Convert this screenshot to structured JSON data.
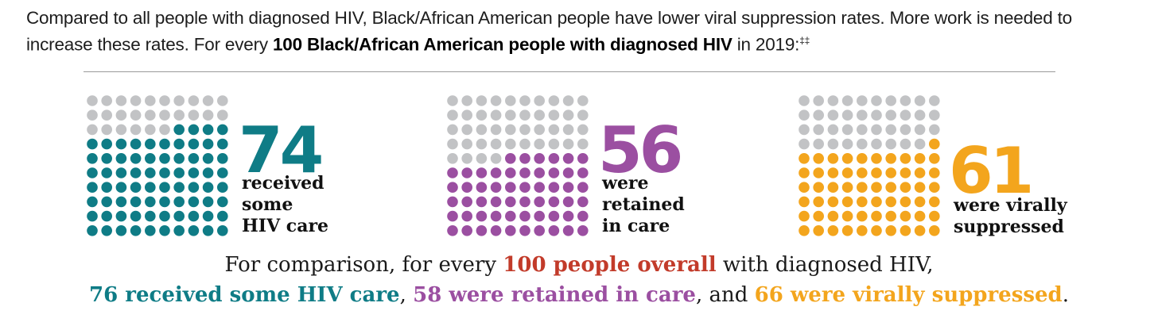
{
  "intro": {
    "text_a": "Compared to all people with diagnosed HIV, Black/African American people have lower viral suppression rates. More work is needed to increase these rates. For every ",
    "bold": "100 Black/African American people with diagnosed HIV",
    "text_b": " in 2019:",
    "footnote": "‡‡"
  },
  "chart_data": {
    "type": "waffle",
    "total": 100,
    "colors": {
      "empty": "#c2c3c5"
    },
    "panels": [
      {
        "value": 74,
        "number": "74",
        "label": [
          "received",
          "some",
          "HIV care"
        ],
        "color": "#0f7c86"
      },
      {
        "value": 56,
        "number": "56",
        "label": [
          "were",
          "retained",
          "in care"
        ],
        "color": "#9b4fa1"
      },
      {
        "value": 61,
        "number": "61",
        "label": [
          "were virally",
          "suppressed"
        ],
        "color": "#f3a51d"
      }
    ]
  },
  "comparison": {
    "line1_a": "For comparison, for every ",
    "line1_bold": "100 people overall",
    "line1_b": " with diagnosed HIV,",
    "care": "76 received some HIV care",
    "sep1": ", ",
    "retained": "58 were retained in care",
    "sep2": ", and ",
    "suppressed": "66 were virally suppressed",
    "end": ".",
    "colors": {
      "overall": "#c23b2a",
      "care": "#0f7c86",
      "retained": "#9b4fa1",
      "suppressed": "#f3a51d"
    }
  }
}
